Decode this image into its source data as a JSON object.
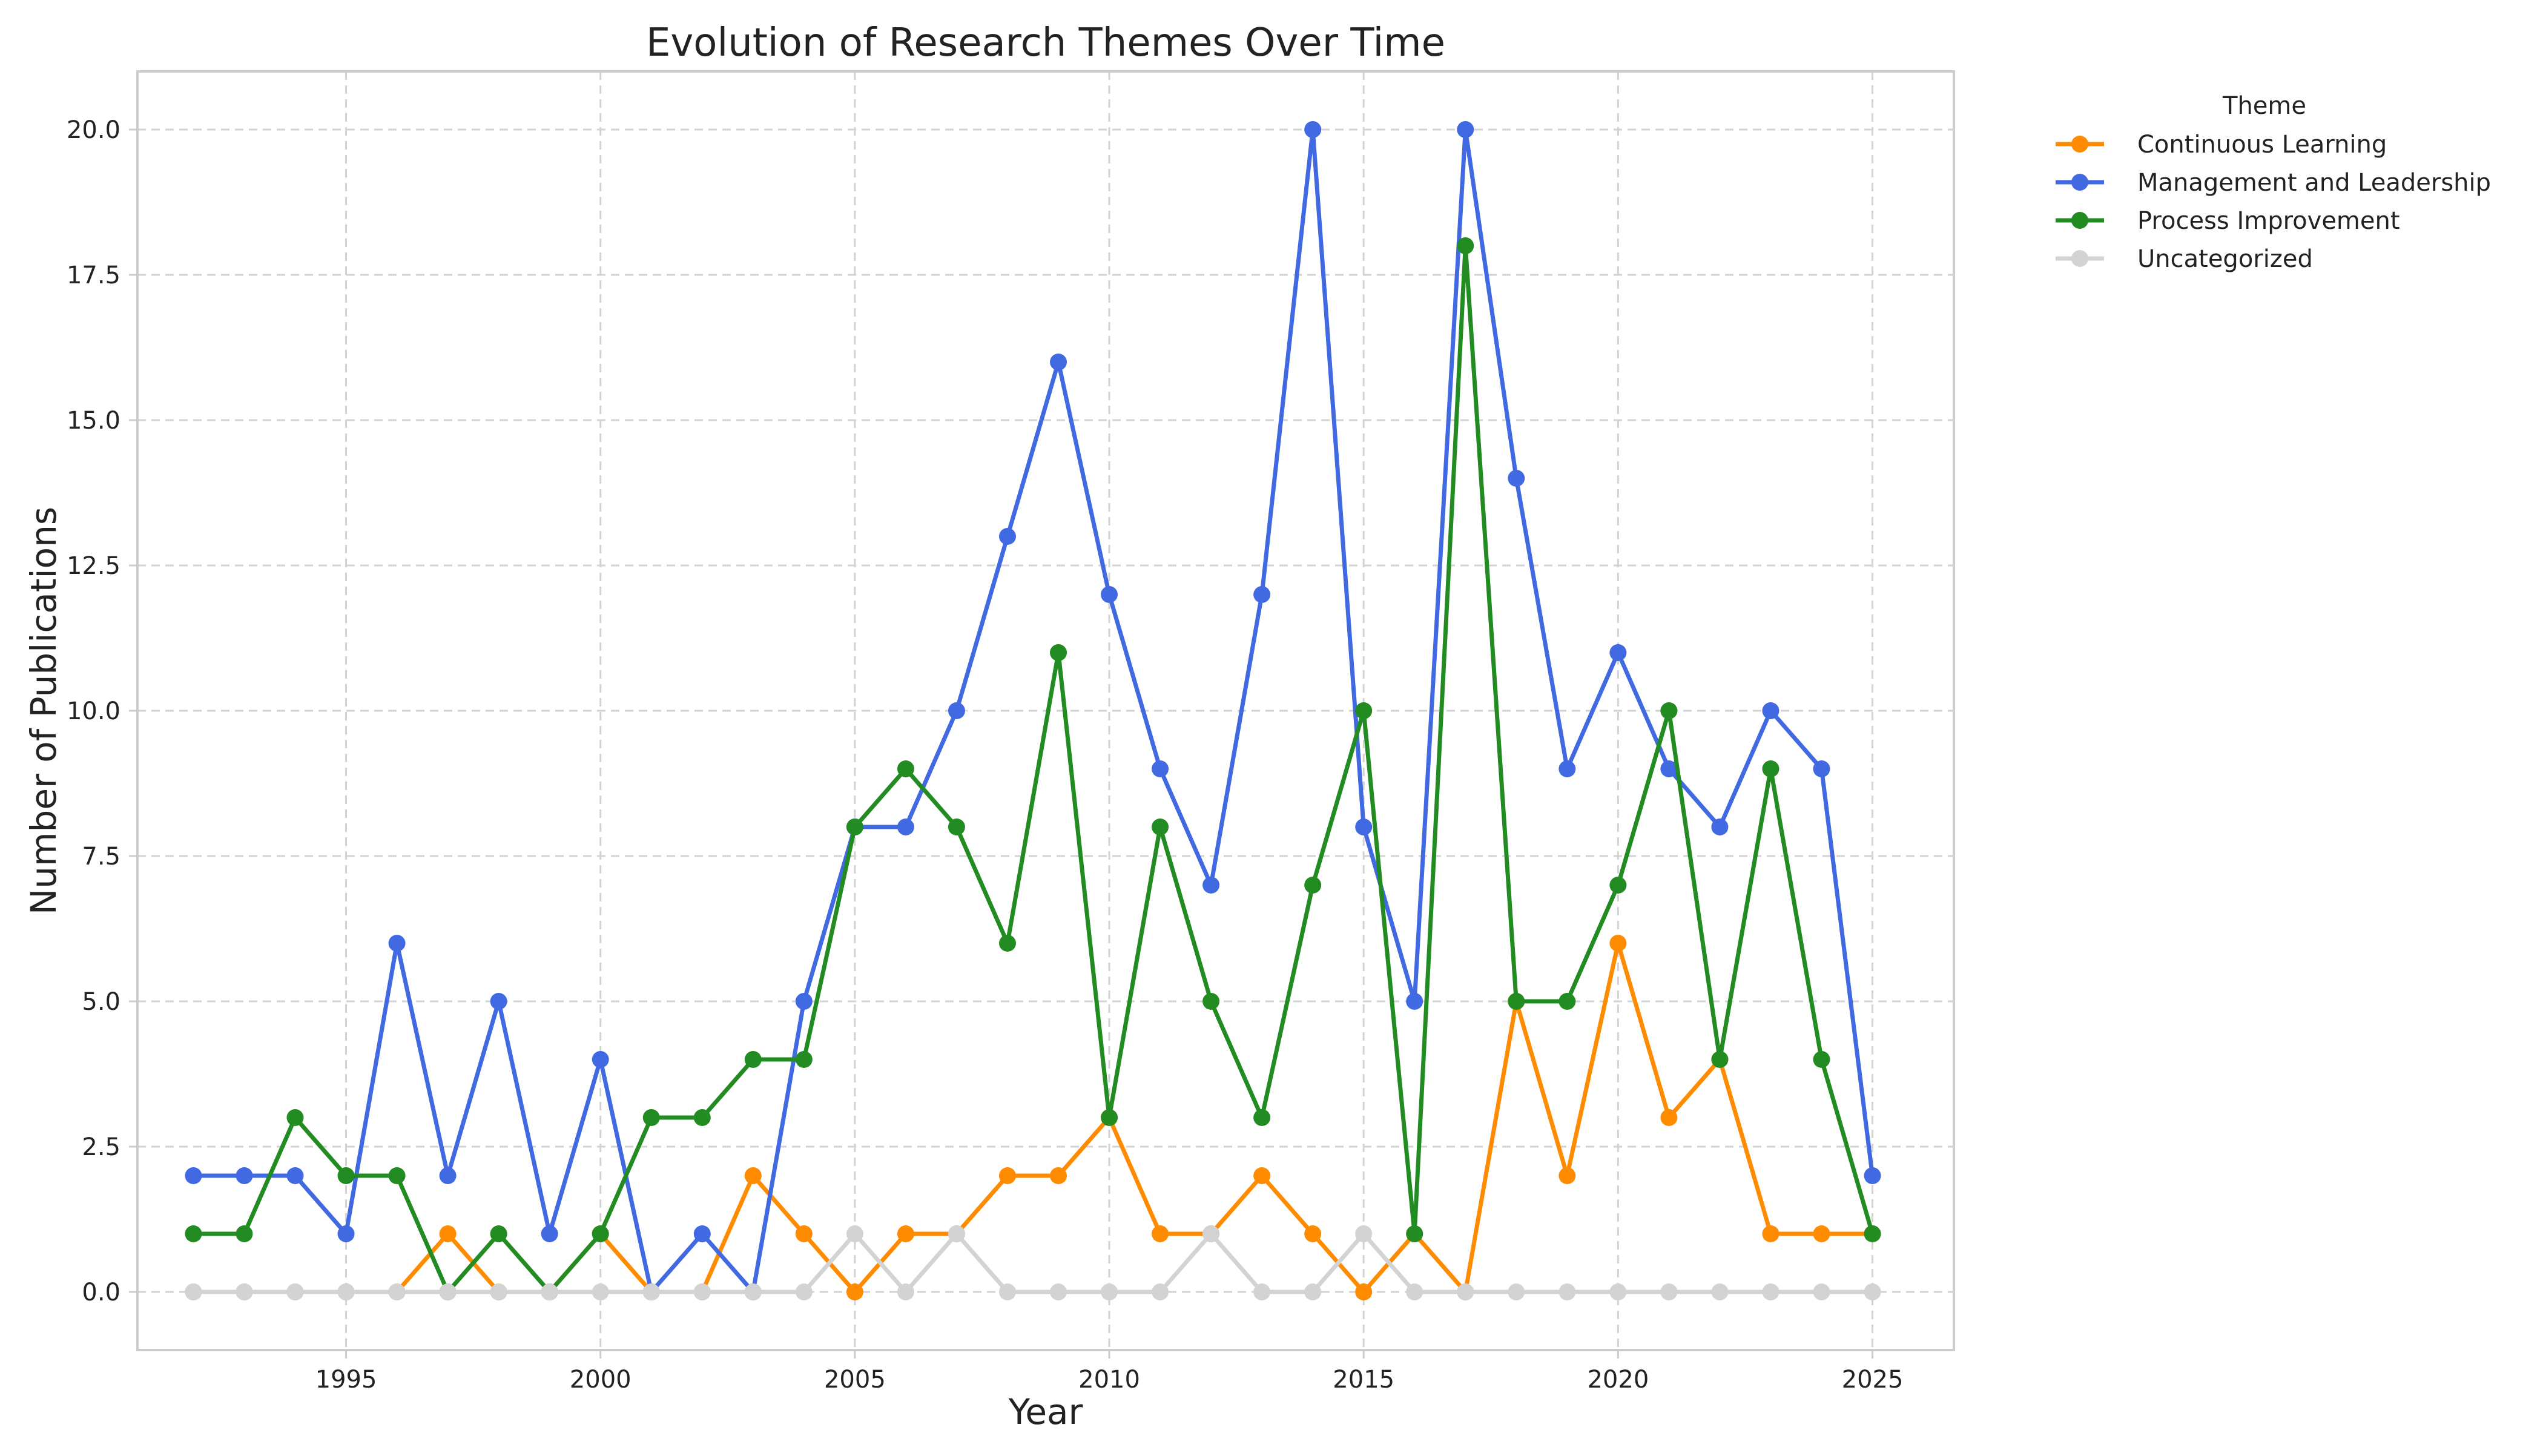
{
  "chart_data": {
    "type": "line",
    "title": "Evolution of Research Themes Over Time",
    "xlabel": "Year",
    "ylabel": "Number of Publications",
    "xlim": [
      1990.9,
      2026.6
    ],
    "ylim": [
      -1.0,
      21.0
    ],
    "xticks": [
      1995,
      2000,
      2005,
      2010,
      2015,
      2020,
      2025
    ],
    "xtick_labels": [
      "1995",
      "2000",
      "2005",
      "2010",
      "2015",
      "2020",
      "2025"
    ],
    "yticks": [
      0,
      2.5,
      5,
      7.5,
      10,
      12.5,
      15,
      17.5,
      20
    ],
    "ytick_labels": [
      "0.0",
      "2.5",
      "5.0",
      "7.5",
      "10.0",
      "12.5",
      "15.0",
      "17.5",
      "20.0"
    ],
    "grid": true,
    "legend": {
      "title": "Theme",
      "placement": "outside top-right"
    },
    "x": [
      1992,
      1993,
      1994,
      1995,
      1996,
      1997,
      1998,
      1999,
      2000,
      2001,
      2002,
      2003,
      2004,
      2005,
      2006,
      2007,
      2008,
      2009,
      2010,
      2011,
      2012,
      2013,
      2014,
      2015,
      2016,
      2017,
      2018,
      2019,
      2020,
      2021,
      2022,
      2023,
      2024,
      2025
    ],
    "series": [
      {
        "name": "Continuous Learning",
        "color": "#ff8c00",
        "values": [
          0,
          0,
          0,
          0,
          0,
          1,
          0,
          0,
          1,
          0,
          0,
          2,
          1,
          0,
          1,
          1,
          2,
          2,
          3,
          1,
          1,
          2,
          1,
          0,
          1,
          0,
          5,
          2,
          6,
          3,
          4,
          1,
          1,
          1
        ]
      },
      {
        "name": "Management and Leadership",
        "color": "#4169e1",
        "values": [
          2,
          2,
          2,
          1,
          6,
          2,
          5,
          1,
          4,
          0,
          1,
          0,
          5,
          8,
          8,
          10,
          13,
          16,
          12,
          9,
          7,
          12,
          20,
          8,
          5,
          20,
          14,
          9,
          11,
          9,
          8,
          10,
          9,
          2
        ]
      },
      {
        "name": "Process Improvement",
        "color": "#228b22",
        "values": [
          1,
          1,
          3,
          2,
          2,
          0,
          1,
          0,
          1,
          3,
          3,
          4,
          4,
          8,
          9,
          8,
          6,
          11,
          3,
          8,
          5,
          3,
          7,
          10,
          1,
          18,
          5,
          5,
          7,
          10,
          4,
          9,
          4,
          1
        ]
      },
      {
        "name": "Uncategorized",
        "color": "#d3d3d3",
        "values": [
          0,
          0,
          0,
          0,
          0,
          0,
          0,
          0,
          0,
          0,
          0,
          0,
          0,
          1,
          0,
          1,
          0,
          0,
          0,
          0,
          1,
          0,
          0,
          1,
          0,
          0,
          0,
          0,
          0,
          0,
          0,
          0,
          0,
          0
        ]
      }
    ]
  }
}
